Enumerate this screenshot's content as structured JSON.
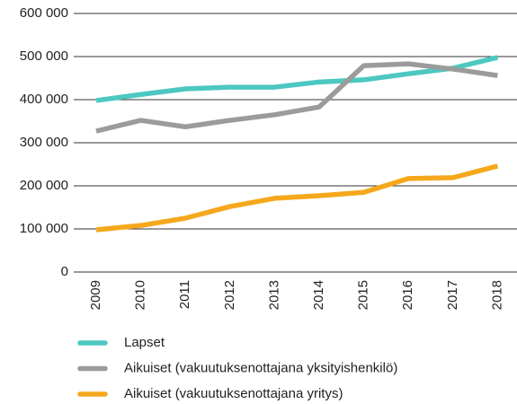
{
  "chart_data": {
    "type": "line",
    "categories": [
      "2009",
      "2010",
      "2011",
      "2012",
      "2013",
      "2014",
      "2015",
      "2016",
      "2017",
      "2018"
    ],
    "series": [
      {
        "name": "Lapset",
        "color": "#4cc8c1",
        "values": [
          398000,
          412000,
          425000,
          429000,
          429000,
          441000,
          446000,
          460000,
          473000,
          498000
        ]
      },
      {
        "name": "Aikuiset (vakuutuksenottajana yksityishenkilö)",
        "color": "#9b9b9b",
        "values": [
          327000,
          352000,
          337000,
          352000,
          365000,
          383000,
          479000,
          483000,
          471000,
          456000
        ]
      },
      {
        "name": "Aikuiset (vakuutuksenottajana yritys)",
        "color": "#f5a81c",
        "values": [
          98000,
          108000,
          125000,
          152000,
          171000,
          177000,
          185000,
          217000,
          219000,
          246000
        ]
      }
    ],
    "ylim": [
      0,
      600000
    ],
    "yticks": [
      0,
      {
        "value": 100000,
        "label": "100 000"
      },
      {
        "value": 200000,
        "label": "200 000"
      },
      {
        "value": 300000,
        "label": "300 000"
      },
      {
        "value": 400000,
        "label": "400 000"
      },
      {
        "value": 500000,
        "label": "500 000"
      },
      {
        "value": 600000,
        "label": "600 000"
      }
    ],
    "grid": true
  }
}
